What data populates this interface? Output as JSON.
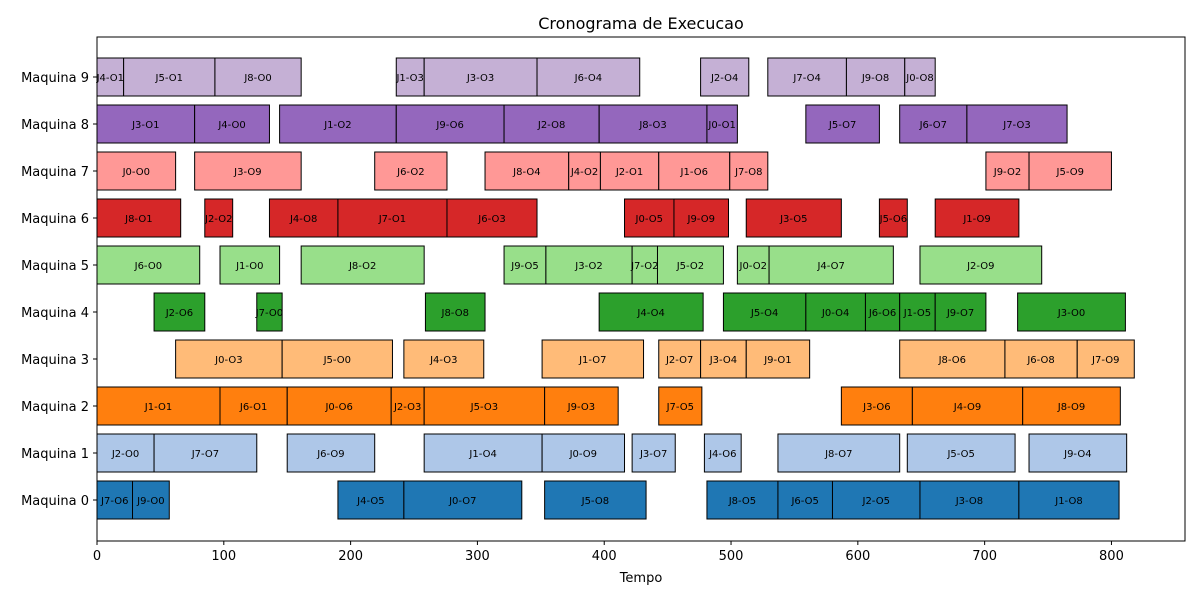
{
  "chart_data": {
    "type": "bar",
    "orientation": "horizontal-gantt",
    "title": "Cronograma de Execucao",
    "xlabel": "Tempo",
    "ylabel": "",
    "xlim": [
      0,
      858
    ],
    "x_ticks": [
      0,
      100,
      200,
      300,
      400,
      500,
      600,
      700,
      800
    ],
    "categories": [
      "Maquina 0",
      "Maquina 1",
      "Maquina 2",
      "Maquina 3",
      "Maquina 4",
      "Maquina 5",
      "Maquina 6",
      "Maquina 7",
      "Maquina 8",
      "Maquina 9"
    ],
    "grid": false,
    "machine_colors": [
      "#1f77b4",
      "#aec7e8",
      "#ff7f0e",
      "#ffbb78",
      "#2ca02c",
      "#98df8a",
      "#d62728",
      "#ff9896",
      "#9467bd",
      "#c5b0d5"
    ],
    "tasks": [
      {
        "machine": 0,
        "label": "J7-O6",
        "start": 0,
        "end": 28
      },
      {
        "machine": 0,
        "label": "J9-O0",
        "start": 28,
        "end": 57
      },
      {
        "machine": 0,
        "label": "J4-O5",
        "start": 190,
        "end": 242
      },
      {
        "machine": 0,
        "label": "J0-O7",
        "start": 242,
        "end": 335
      },
      {
        "machine": 0,
        "label": "J5-O8",
        "start": 353,
        "end": 433
      },
      {
        "machine": 0,
        "label": "J8-O5",
        "start": 481,
        "end": 537
      },
      {
        "machine": 0,
        "label": "J6-O5",
        "start": 537,
        "end": 580
      },
      {
        "machine": 0,
        "label": "J2-O5",
        "start": 580,
        "end": 649
      },
      {
        "machine": 0,
        "label": "J3-O8",
        "start": 649,
        "end": 727
      },
      {
        "machine": 0,
        "label": "J1-O8",
        "start": 727,
        "end": 806
      },
      {
        "machine": 1,
        "label": "J2-O0",
        "start": 0,
        "end": 45
      },
      {
        "machine": 1,
        "label": "J7-O7",
        "start": 45,
        "end": 126
      },
      {
        "machine": 1,
        "label": "J6-O9",
        "start": 150,
        "end": 219
      },
      {
        "machine": 1,
        "label": "J1-O4",
        "start": 258,
        "end": 351
      },
      {
        "machine": 1,
        "label": "J0-O9",
        "start": 351,
        "end": 416
      },
      {
        "machine": 1,
        "label": "J3-O7",
        "start": 422,
        "end": 456
      },
      {
        "machine": 1,
        "label": "J4-O6",
        "start": 479,
        "end": 508
      },
      {
        "machine": 1,
        "label": "J8-O7",
        "start": 537,
        "end": 633
      },
      {
        "machine": 1,
        "label": "J5-O5",
        "start": 639,
        "end": 724
      },
      {
        "machine": 1,
        "label": "J9-O4",
        "start": 735,
        "end": 812
      },
      {
        "machine": 2,
        "label": "J1-O1",
        "start": 0,
        "end": 97
      },
      {
        "machine": 2,
        "label": "J6-O1",
        "start": 97,
        "end": 150
      },
      {
        "machine": 2,
        "label": "J0-O6",
        "start": 150,
        "end": 232
      },
      {
        "machine": 2,
        "label": "J2-O3",
        "start": 232,
        "end": 258
      },
      {
        "machine": 2,
        "label": "J5-O3",
        "start": 258,
        "end": 353
      },
      {
        "machine": 2,
        "label": "J9-O3",
        "start": 353,
        "end": 411
      },
      {
        "machine": 2,
        "label": "J7-O5",
        "start": 443,
        "end": 477
      },
      {
        "machine": 2,
        "label": "J3-O6",
        "start": 587,
        "end": 643
      },
      {
        "machine": 2,
        "label": "J4-O9",
        "start": 643,
        "end": 730
      },
      {
        "machine": 2,
        "label": "J8-O9",
        "start": 730,
        "end": 807
      },
      {
        "machine": 3,
        "label": "J0-O3",
        "start": 62,
        "end": 146
      },
      {
        "machine": 3,
        "label": "J5-O0",
        "start": 146,
        "end": 233
      },
      {
        "machine": 3,
        "label": "J4-O3",
        "start": 242,
        "end": 305
      },
      {
        "machine": 3,
        "label": "J1-O7",
        "start": 351,
        "end": 431
      },
      {
        "machine": 3,
        "label": "J2-O7",
        "start": 443,
        "end": 476
      },
      {
        "machine": 3,
        "label": "J3-O4",
        "start": 476,
        "end": 512
      },
      {
        "machine": 3,
        "label": "J9-O1",
        "start": 512,
        "end": 562
      },
      {
        "machine": 3,
        "label": "J8-O6",
        "start": 633,
        "end": 716
      },
      {
        "machine": 3,
        "label": "J6-O8",
        "start": 716,
        "end": 773
      },
      {
        "machine": 3,
        "label": "J7-O9",
        "start": 773,
        "end": 818
      },
      {
        "machine": 4,
        "label": "J2-O6",
        "start": 45,
        "end": 85
      },
      {
        "machine": 4,
        "label": "J7-O0",
        "start": 126,
        "end": 146
      },
      {
        "machine": 4,
        "label": "J8-O8",
        "start": 259,
        "end": 306
      },
      {
        "machine": 4,
        "label": "J4-O4",
        "start": 396,
        "end": 478
      },
      {
        "machine": 4,
        "label": "J5-O4",
        "start": 494,
        "end": 559
      },
      {
        "machine": 4,
        "label": "J0-O4",
        "start": 559,
        "end": 606
      },
      {
        "machine": 4,
        "label": "J6-O6",
        "start": 606,
        "end": 633
      },
      {
        "machine": 4,
        "label": "J1-O5",
        "start": 633,
        "end": 661
      },
      {
        "machine": 4,
        "label": "J9-O7",
        "start": 661,
        "end": 701
      },
      {
        "machine": 4,
        "label": "J3-O0",
        "start": 726,
        "end": 811
      },
      {
        "machine": 5,
        "label": "J6-O0",
        "start": 0,
        "end": 81
      },
      {
        "machine": 5,
        "label": "J1-O0",
        "start": 97,
        "end": 144
      },
      {
        "machine": 5,
        "label": "J8-O2",
        "start": 161,
        "end": 258
      },
      {
        "machine": 5,
        "label": "J9-O5",
        "start": 321,
        "end": 354
      },
      {
        "machine": 5,
        "label": "J3-O2",
        "start": 354,
        "end": 422
      },
      {
        "machine": 5,
        "label": "J7-O2",
        "start": 422,
        "end": 442
      },
      {
        "machine": 5,
        "label": "J5-O2",
        "start": 442,
        "end": 494
      },
      {
        "machine": 5,
        "label": "J0-O2",
        "start": 505,
        "end": 530
      },
      {
        "machine": 5,
        "label": "J4-O7",
        "start": 530,
        "end": 628
      },
      {
        "machine": 5,
        "label": "J2-O9",
        "start": 649,
        "end": 745
      },
      {
        "machine": 6,
        "label": "J8-O1",
        "start": 0,
        "end": 66
      },
      {
        "machine": 6,
        "label": "J2-O2",
        "start": 85,
        "end": 107
      },
      {
        "machine": 6,
        "label": "J4-O8",
        "start": 136,
        "end": 190
      },
      {
        "machine": 6,
        "label": "J7-O1",
        "start": 190,
        "end": 276
      },
      {
        "machine": 6,
        "label": "J6-O3",
        "start": 276,
        "end": 347
      },
      {
        "machine": 6,
        "label": "J0-O5",
        "start": 416,
        "end": 455
      },
      {
        "machine": 6,
        "label": "J9-O9",
        "start": 455,
        "end": 498
      },
      {
        "machine": 6,
        "label": "J3-O5",
        "start": 512,
        "end": 587
      },
      {
        "machine": 6,
        "label": "J5-O6",
        "start": 617,
        "end": 639
      },
      {
        "machine": 6,
        "label": "J1-O9",
        "start": 661,
        "end": 727
      },
      {
        "machine": 7,
        "label": "J0-O0",
        "start": 0,
        "end": 62
      },
      {
        "machine": 7,
        "label": "J3-O9",
        "start": 77,
        "end": 161
      },
      {
        "machine": 7,
        "label": "J6-O2",
        "start": 219,
        "end": 276
      },
      {
        "machine": 7,
        "label": "J8-O4",
        "start": 306,
        "end": 372
      },
      {
        "machine": 7,
        "label": "J4-O2",
        "start": 372,
        "end": 397
      },
      {
        "machine": 7,
        "label": "J2-O1",
        "start": 397,
        "end": 443
      },
      {
        "machine": 7,
        "label": "J1-O6",
        "start": 443,
        "end": 499
      },
      {
        "machine": 7,
        "label": "J7-O8",
        "start": 499,
        "end": 529
      },
      {
        "machine": 7,
        "label": "J9-O2",
        "start": 701,
        "end": 735
      },
      {
        "machine": 7,
        "label": "J5-O9",
        "start": 735,
        "end": 800
      },
      {
        "machine": 8,
        "label": "J3-O1",
        "start": 0,
        "end": 77
      },
      {
        "machine": 8,
        "label": "J4-O0",
        "start": 77,
        "end": 136
      },
      {
        "machine": 8,
        "label": "J1-O2",
        "start": 144,
        "end": 236
      },
      {
        "machine": 8,
        "label": "J9-O6",
        "start": 236,
        "end": 321
      },
      {
        "machine": 8,
        "label": "J2-O8",
        "start": 321,
        "end": 396
      },
      {
        "machine": 8,
        "label": "J8-O3",
        "start": 396,
        "end": 481
      },
      {
        "machine": 8,
        "label": "J0-O1",
        "start": 481,
        "end": 505
      },
      {
        "machine": 8,
        "label": "J5-O7",
        "start": 559,
        "end": 617
      },
      {
        "machine": 8,
        "label": "J6-O7",
        "start": 633,
        "end": 686
      },
      {
        "machine": 8,
        "label": "J7-O3",
        "start": 686,
        "end": 765
      },
      {
        "machine": 9,
        "label": "J4-O1",
        "start": 0,
        "end": 21
      },
      {
        "machine": 9,
        "label": "J5-O1",
        "start": 21,
        "end": 93
      },
      {
        "machine": 9,
        "label": "J8-O0",
        "start": 93,
        "end": 161
      },
      {
        "machine": 9,
        "label": "J1-O3",
        "start": 236,
        "end": 258
      },
      {
        "machine": 9,
        "label": "J3-O3",
        "start": 258,
        "end": 347
      },
      {
        "machine": 9,
        "label": "J6-O4",
        "start": 347,
        "end": 428
      },
      {
        "machine": 9,
        "label": "J2-O4",
        "start": 476,
        "end": 514
      },
      {
        "machine": 9,
        "label": "J7-O4",
        "start": 529,
        "end": 591
      },
      {
        "machine": 9,
        "label": "J9-O8",
        "start": 591,
        "end": 637
      },
      {
        "machine": 9,
        "label": "J0-O8",
        "start": 637,
        "end": 661
      }
    ]
  }
}
